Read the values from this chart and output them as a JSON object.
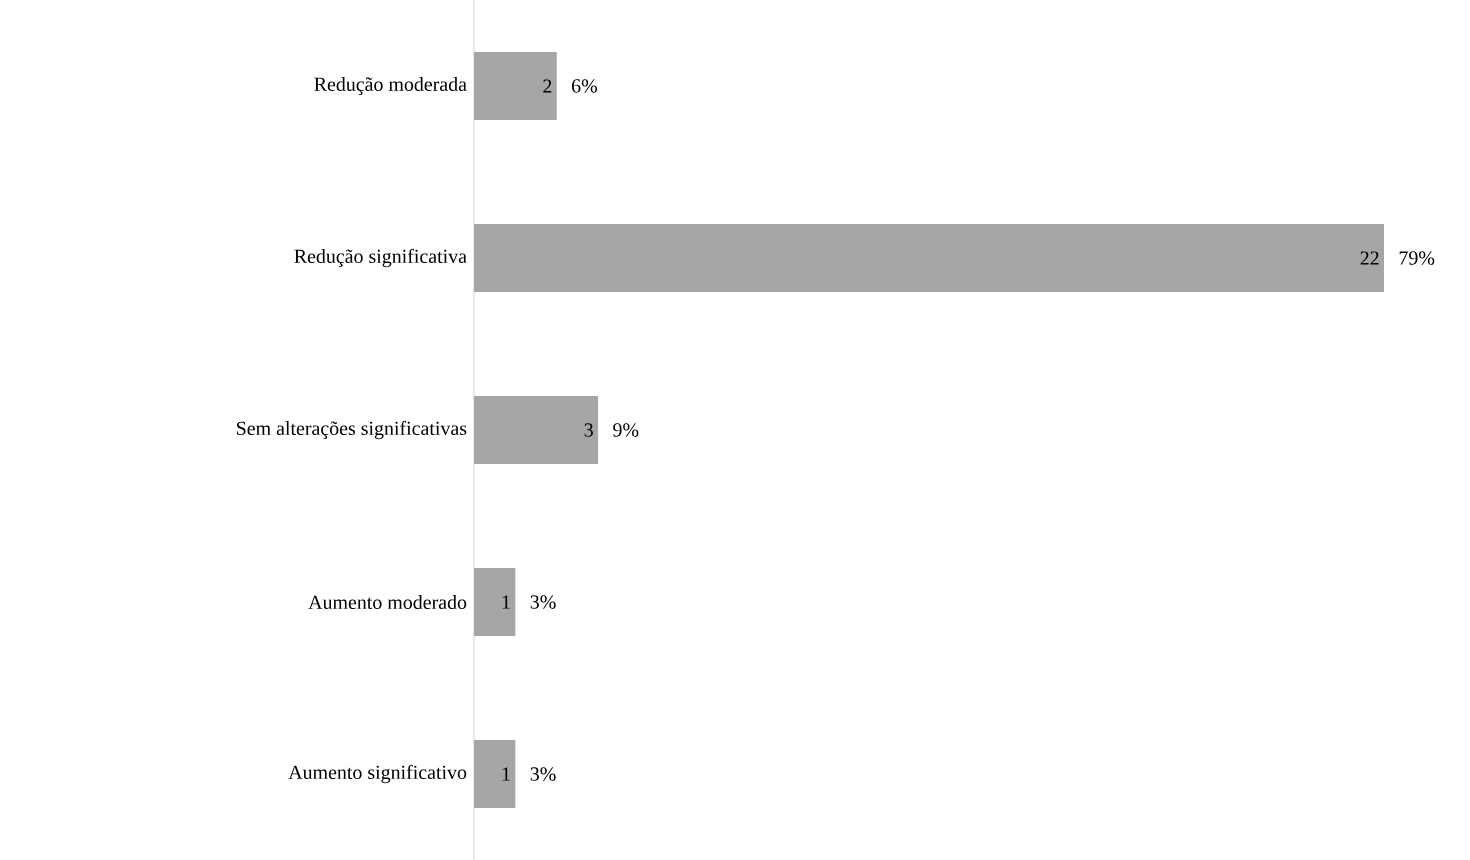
{
  "chart_data": {
    "type": "bar",
    "orientation": "horizontal",
    "categories": [
      "Redução moderada",
      "Redução significativa",
      "Sem alterações significativas",
      "Aumento moderado",
      "Aumento significativo"
    ],
    "values": [
      2,
      22,
      3,
      1,
      1
    ],
    "color": "#a6a6a6",
    "data_labels": true,
    "annotations": [
      {
        "text": "6%",
        "x": 2,
        "y": "Redução moderada"
      },
      {
        "text": "79%",
        "x": 22,
        "y": "Redução significativa"
      },
      {
        "text": "9%",
        "x": 3,
        "y": "Sem alterações significativas"
      },
      {
        "text": "3%",
        "x": 1,
        "y": "Aumento moderado"
      },
      {
        "text": "3%",
        "x": 1,
        "y": "Aumento significativo"
      }
    ]
  }
}
